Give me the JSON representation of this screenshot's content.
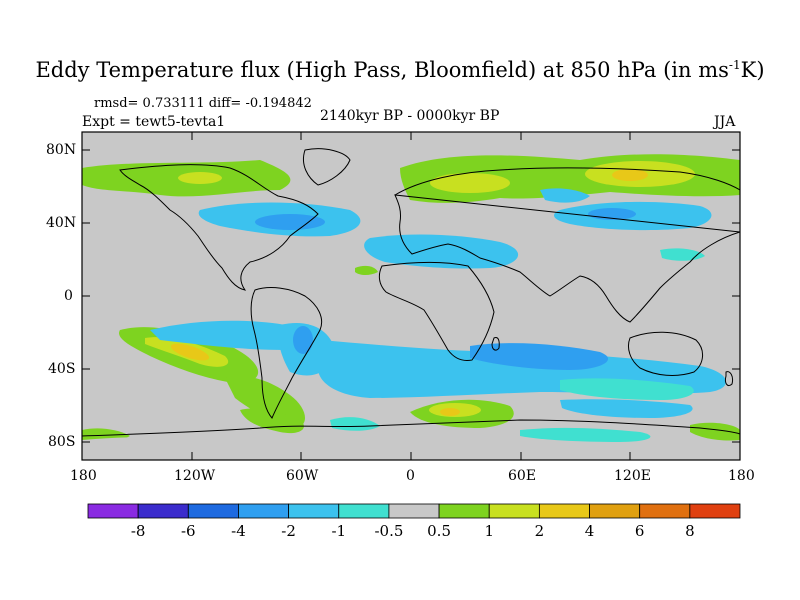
{
  "header": {
    "title_main": "Eddy Temperature flux (High Pass, Bloomfield) at 850 hPa (in ms",
    "title_sup": "-1",
    "title_tail": "K)",
    "stats": "rmsd= 0.733111 diff= -0.194842",
    "experiment": "Expt = tewt5-tevta1",
    "period": "2140kyr BP - 0000kyr BP",
    "season": "JJA"
  },
  "axes": {
    "lat_ticks": [
      "80N",
      "40N",
      "0",
      "40S",
      "80S"
    ],
    "lon_ticks": [
      "180",
      "120W",
      "60W",
      "0",
      "60E",
      "120E",
      "180"
    ]
  },
  "colorbar": {
    "colors": [
      "#8a2be2",
      "#3b2ccc",
      "#1e6ae0",
      "#2f9ff0",
      "#3cc2ee",
      "#40e0d0",
      "#c8c8c8",
      "#7ed320",
      "#c8e020",
      "#e8c818",
      "#e0a010",
      "#e07010",
      "#e04010"
    ],
    "labels": [
      "-8",
      "-6",
      "-4",
      "-2",
      "-1",
      "-0.5",
      "0.5",
      "1",
      "2",
      "4",
      "6",
      "8"
    ]
  },
  "map": {
    "background": "#c8c8c8",
    "coast_color": "#000000"
  }
}
